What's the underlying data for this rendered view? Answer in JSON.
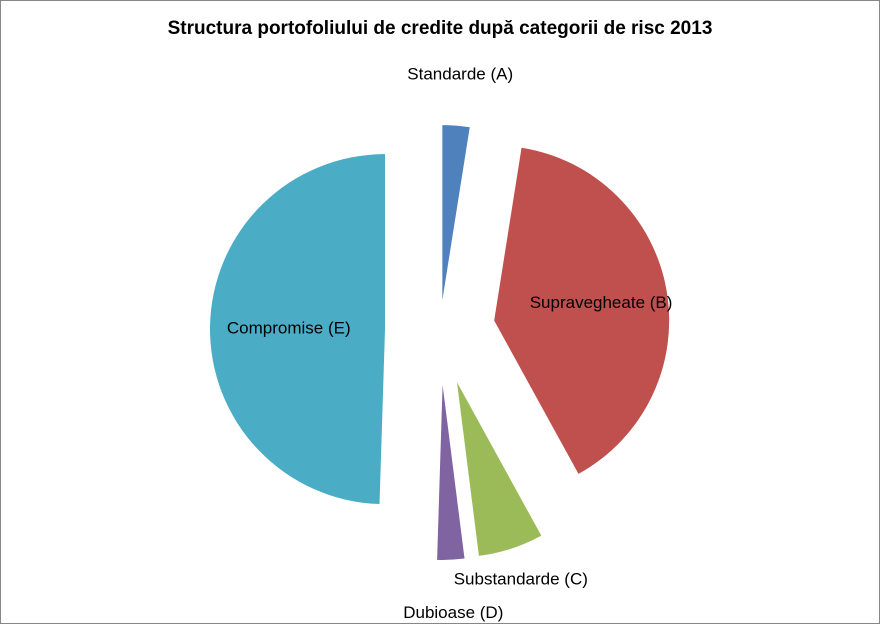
{
  "chart_data": {
    "type": "pie",
    "title": "Structura portofoliului de credite după categorii de risc 2013",
    "exploded": true,
    "slices": [
      {
        "label": "Standarde (A)",
        "value": 2.5,
        "color": "#4F81BD"
      },
      {
        "label": "Supravegheate (B)",
        "value": 39.5,
        "color": "#C0504D"
      },
      {
        "label": "Substandarde (C)",
        "value": 6.0,
        "color": "#9BBB59"
      },
      {
        "label": "Dubioase (D)",
        "value": 2.5,
        "color": "#8064A2"
      },
      {
        "label": "Compromise (E)",
        "value": 49.5,
        "color": "#4BACC6"
      }
    ]
  }
}
